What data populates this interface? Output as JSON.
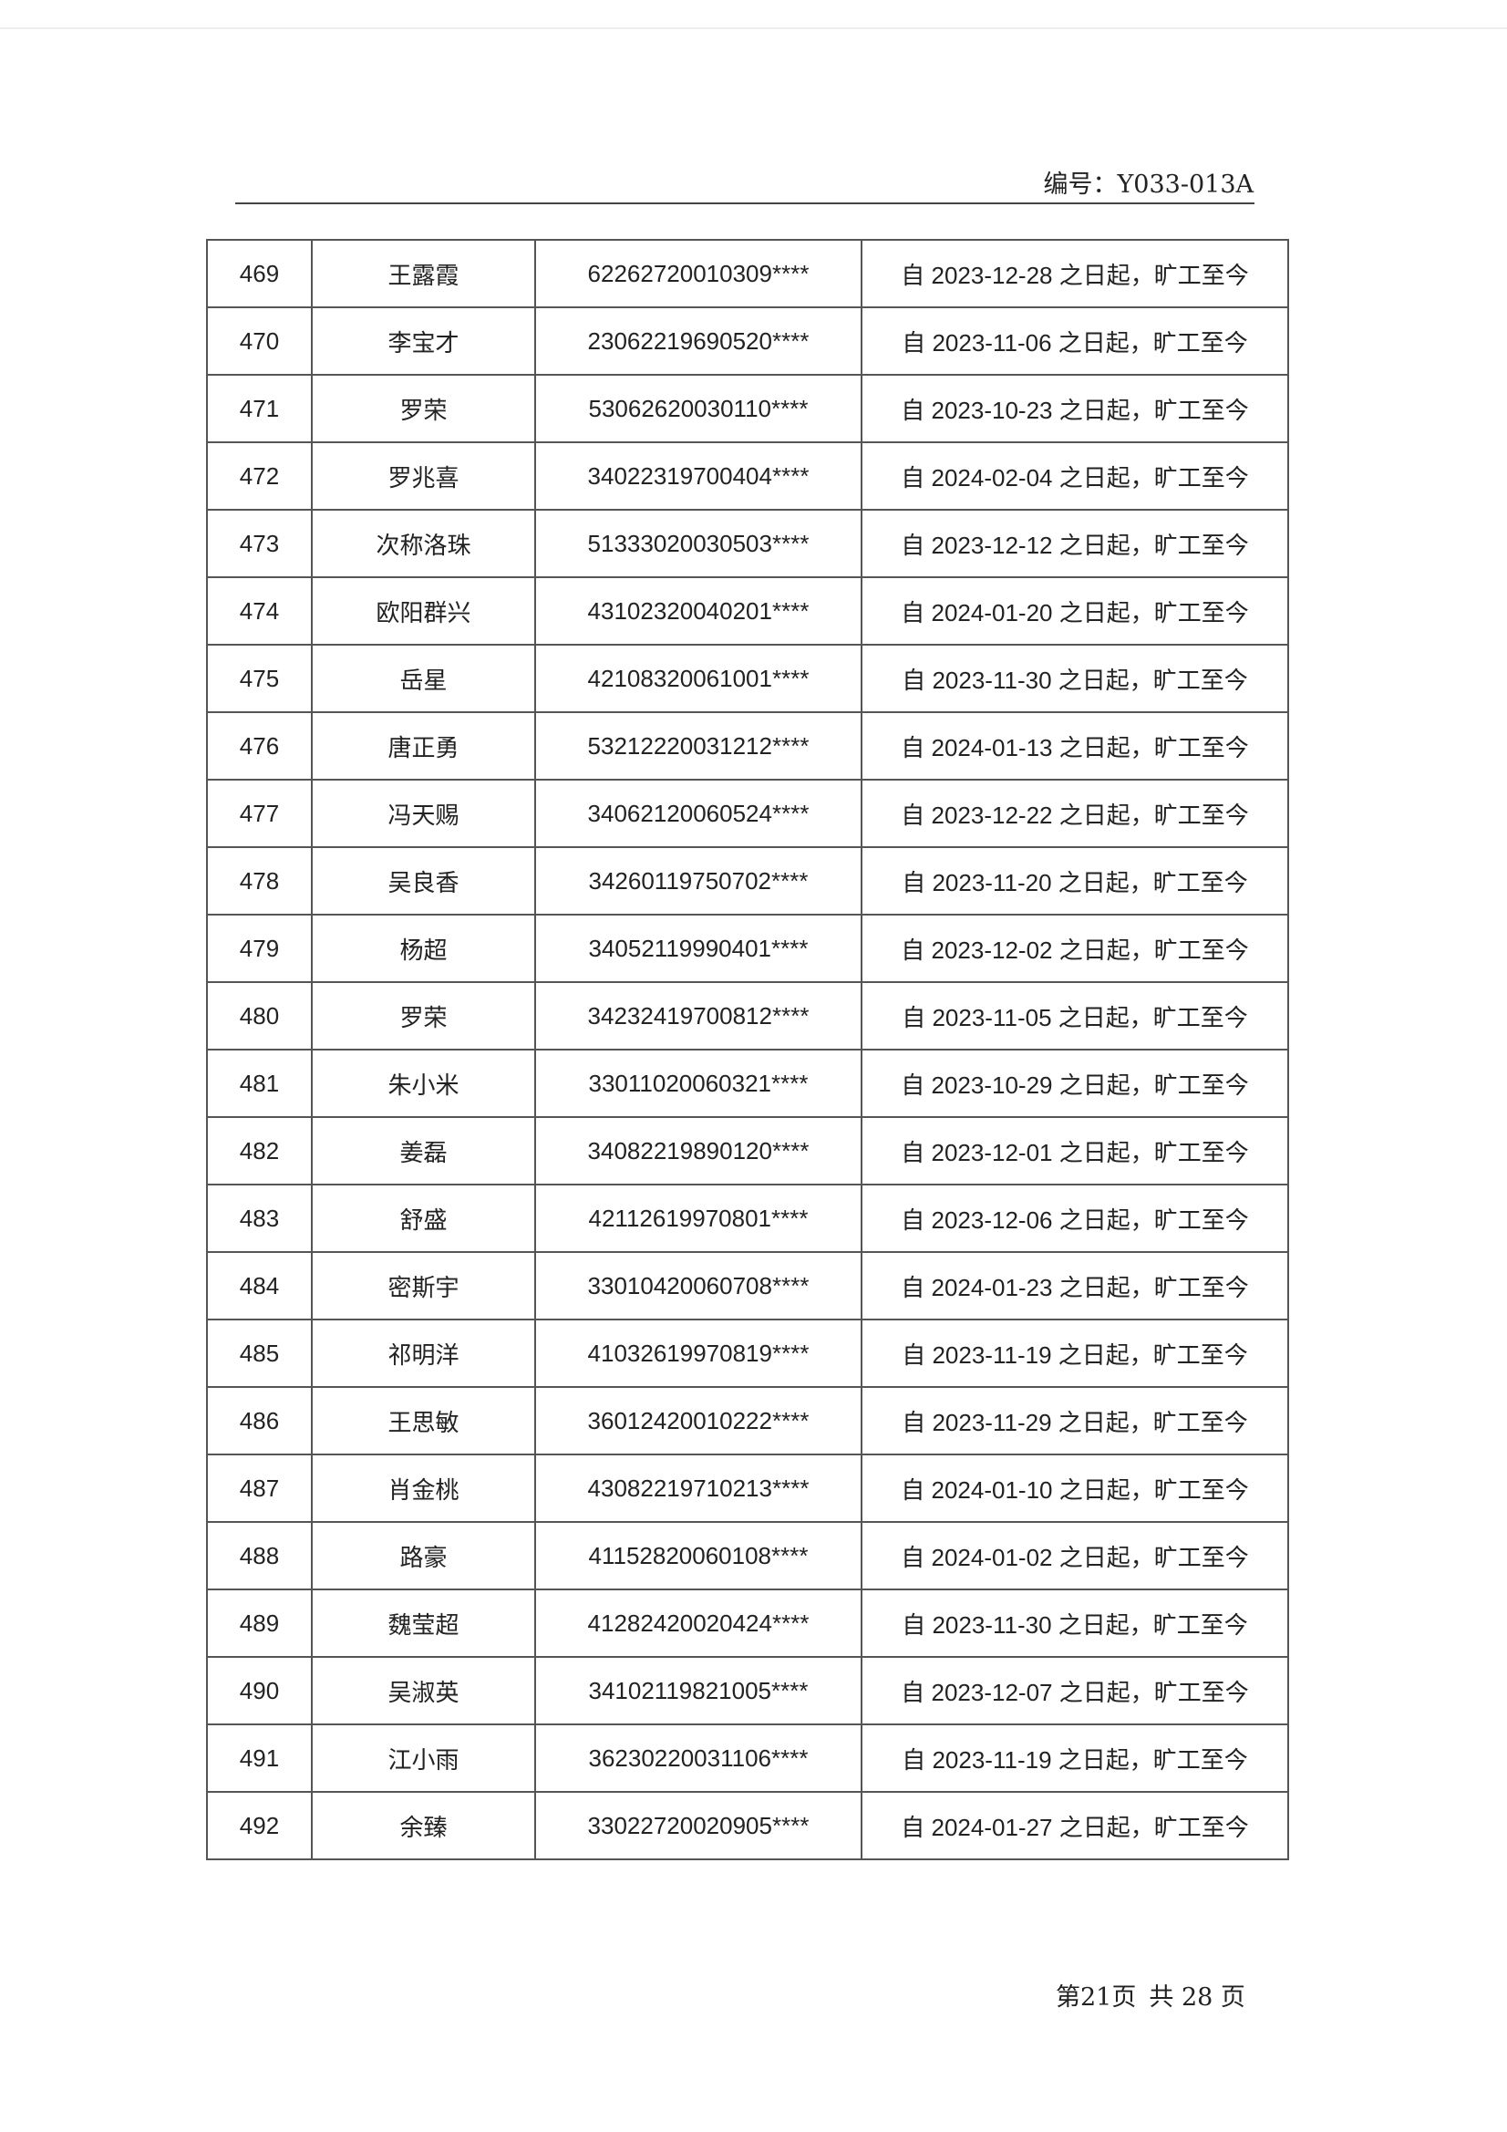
{
  "header": {
    "doc_number": "编号：Y033-013A"
  },
  "table": {
    "rows": [
      {
        "no": "469",
        "name": "王露霞",
        "id": "62262720010309****",
        "status": "自 2023-12-28 之日起，旷工至今"
      },
      {
        "no": "470",
        "name": "李宝才",
        "id": "23062219690520****",
        "status": "自 2023-11-06 之日起，旷工至今"
      },
      {
        "no": "471",
        "name": "罗荣",
        "id": "53062620030110****",
        "status": "自 2023-10-23 之日起，旷工至今"
      },
      {
        "no": "472",
        "name": "罗兆喜",
        "id": "34022319700404****",
        "status": "自 2024-02-04 之日起，旷工至今"
      },
      {
        "no": "473",
        "name": "次称洛珠",
        "id": "51333020030503****",
        "status": "自 2023-12-12 之日起，旷工至今"
      },
      {
        "no": "474",
        "name": "欧阳群兴",
        "id": "43102320040201****",
        "status": "自 2024-01-20 之日起，旷工至今"
      },
      {
        "no": "475",
        "name": "岳星",
        "id": "42108320061001****",
        "status": "自 2023-11-30 之日起，旷工至今"
      },
      {
        "no": "476",
        "name": "唐正勇",
        "id": "53212220031212****",
        "status": "自 2024-01-13 之日起，旷工至今"
      },
      {
        "no": "477",
        "name": "冯天赐",
        "id": "34062120060524****",
        "status": "自 2023-12-22 之日起，旷工至今"
      },
      {
        "no": "478",
        "name": "吴良香",
        "id": "34260119750702****",
        "status": "自 2023-11-20 之日起，旷工至今"
      },
      {
        "no": "479",
        "name": "杨超",
        "id": "34052119990401****",
        "status": "自 2023-12-02 之日起，旷工至今"
      },
      {
        "no": "480",
        "name": "罗荣",
        "id": "34232419700812****",
        "status": "自 2023-11-05 之日起，旷工至今"
      },
      {
        "no": "481",
        "name": "朱小米",
        "id": "33011020060321****",
        "status": "自 2023-10-29 之日起，旷工至今"
      },
      {
        "no": "482",
        "name": "姜磊",
        "id": "34082219890120****",
        "status": "自 2023-12-01 之日起，旷工至今"
      },
      {
        "no": "483",
        "name": "舒盛",
        "id": "42112619970801****",
        "status": "自 2023-12-06 之日起，旷工至今"
      },
      {
        "no": "484",
        "name": "密斯宇",
        "id": "33010420060708****",
        "status": "自 2024-01-23 之日起，旷工至今"
      },
      {
        "no": "485",
        "name": "祁明洋",
        "id": "41032619970819****",
        "status": "自 2023-11-19 之日起，旷工至今"
      },
      {
        "no": "486",
        "name": "王思敏",
        "id": "36012420010222****",
        "status": "自 2023-11-29 之日起，旷工至今"
      },
      {
        "no": "487",
        "name": "肖金桃",
        "id": "43082219710213****",
        "status": "自 2024-01-10 之日起，旷工至今"
      },
      {
        "no": "488",
        "name": "路豪",
        "id": "41152820060108****",
        "status": "自 2024-01-02 之日起，旷工至今"
      },
      {
        "no": "489",
        "name": "魏莹超",
        "id": "41282420020424****",
        "status": "自 2023-11-30 之日起，旷工至今"
      },
      {
        "no": "490",
        "name": "吴淑英",
        "id": "34102119821005****",
        "status": "自 2023-12-07 之日起，旷工至今"
      },
      {
        "no": "491",
        "name": "江小雨",
        "id": "36230220031106****",
        "status": "自 2023-11-19 之日起，旷工至今"
      },
      {
        "no": "492",
        "name": "余臻",
        "id": "33022720020905****",
        "status": "自 2024-01-27 之日起，旷工至今"
      }
    ]
  },
  "footer": {
    "page": "第21页",
    "total": "共 28 页"
  }
}
